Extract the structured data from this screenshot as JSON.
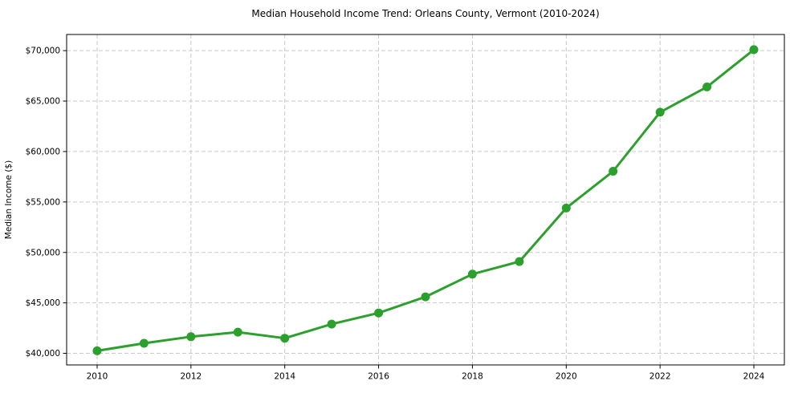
{
  "chart_data": {
    "type": "line",
    "title": "Median Household Income Trend: Orleans County, Vermont (2010-2024)",
    "xlabel": "",
    "ylabel": "Median Income ($)",
    "x": [
      2010,
      2011,
      2012,
      2013,
      2014,
      2015,
      2016,
      2017,
      2018,
      2019,
      2020,
      2021,
      2022,
      2023,
      2024
    ],
    "series": [
      {
        "name": "Median Household Income",
        "values": [
          40250,
          41000,
          41650,
          42100,
          41500,
          42900,
          44000,
          45600,
          47850,
          49100,
          54400,
          58050,
          63900,
          66400,
          70100
        ]
      }
    ],
    "xticks": [
      2010,
      2012,
      2014,
      2016,
      2018,
      2020,
      2022,
      2024
    ],
    "yticks": [
      40000,
      45000,
      50000,
      55000,
      60000,
      65000,
      70000
    ],
    "ytick_labels": [
      "$40,000",
      "$45,000",
      "$50,000",
      "$55,000",
      "$60,000",
      "$65,000",
      "$70,000"
    ],
    "xlim": [
      2009.35,
      2024.65
    ],
    "ylim": [
      38850,
      71600
    ],
    "grid": "on",
    "grid_style": "dashed",
    "legend_position": "none",
    "colors": {
      "line": "#2ca02c",
      "marker": "#2ca02c",
      "grid": "#c9c9c9",
      "spine": "#000000",
      "background": "#ffffff"
    }
  }
}
